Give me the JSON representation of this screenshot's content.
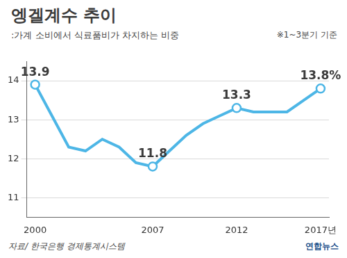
{
  "chart_data": {
    "type": "line",
    "title": "엥겔계수 추이",
    "subtitle": ":가계 소비에서 식료품비가 차지하는 비중",
    "note": "※1~3분기 기준",
    "source": "자료/ 한국은행 경제통계시스템",
    "credit": "연합뉴스",
    "categories": [
      "2000",
      null,
      null,
      null,
      null,
      null,
      null,
      "2007",
      null,
      null,
      null,
      null,
      "2012",
      null,
      null,
      null,
      null,
      "2017년"
    ],
    "values": [
      13.9,
      13.1,
      12.3,
      12.2,
      12.5,
      12.3,
      11.9,
      11.8,
      12.2,
      12.6,
      12.9,
      13.1,
      13.3,
      13.2,
      13.2,
      13.2,
      13.5,
      13.8
    ],
    "value_labels": [
      "13.9",
      null,
      null,
      null,
      null,
      null,
      null,
      "11.8",
      null,
      null,
      null,
      null,
      "13.3",
      null,
      null,
      null,
      null,
      "13.8%"
    ],
    "color": "#4db6e6",
    "marker": "circle",
    "data_labels": true,
    "ylim": [
      10.5,
      14.5
    ],
    "yticks": [
      11,
      12,
      13,
      14
    ],
    "grid": true
  }
}
